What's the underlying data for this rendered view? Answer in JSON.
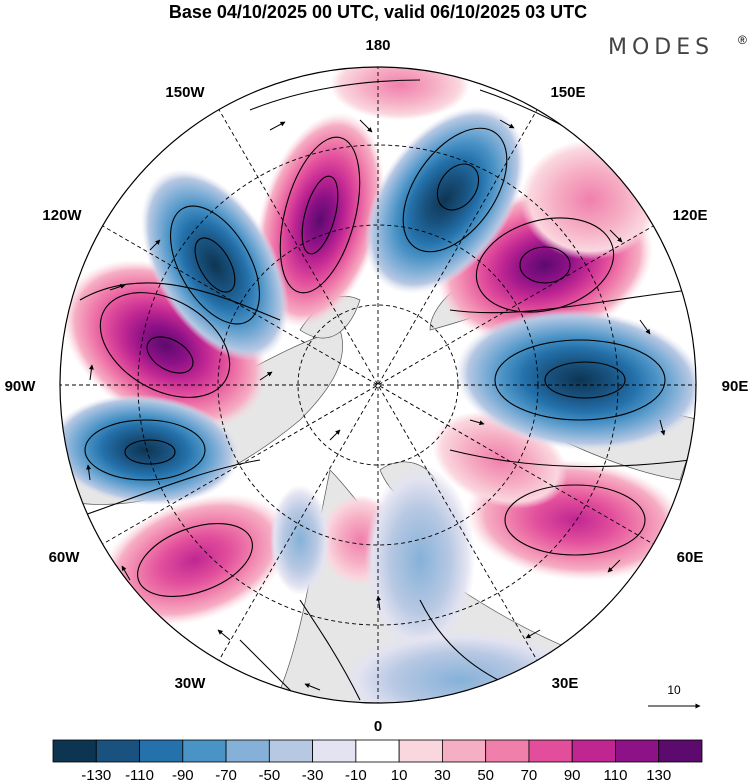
{
  "title": "Base 04/10/2025 00 UTC, valid 06/10/2025 03 UTC",
  "logo": {
    "text": "MODES",
    "mark": "®"
  },
  "longitude_labels": {
    "lon_180": "180",
    "lon_150E": "150E",
    "lon_120E": "120E",
    "lon_90E": "90E",
    "lon_60E": "60E",
    "lon_30E": "30E",
    "lon_0": "0",
    "lon_30W": "30W",
    "lon_60W": "60W",
    "lon_90W": "90W",
    "lon_120W": "120W",
    "lon_150W": "150W"
  },
  "vector_reference": {
    "label": "10"
  },
  "colorbar": {
    "colors": [
      "#0d3552",
      "#19527f",
      "#2471ab",
      "#4a93c6",
      "#85b1d8",
      "#b7c8e3",
      "#e3e3f1",
      "#ffffff",
      "#fad6df",
      "#f6aec4",
      "#f07fac",
      "#e24e9c",
      "#bf2692",
      "#8d1187",
      "#5c0a6e"
    ],
    "tick_labels": [
      "-130",
      "-110",
      "-90",
      "-70",
      "-50",
      "-30",
      "-10",
      "10",
      "30",
      "50",
      "70",
      "90",
      "110",
      "130"
    ]
  },
  "anomaly_centers": [
    {
      "sign": "negative",
      "label": "blue-1"
    },
    {
      "sign": "positive",
      "label": "pink-1"
    }
  ]
}
